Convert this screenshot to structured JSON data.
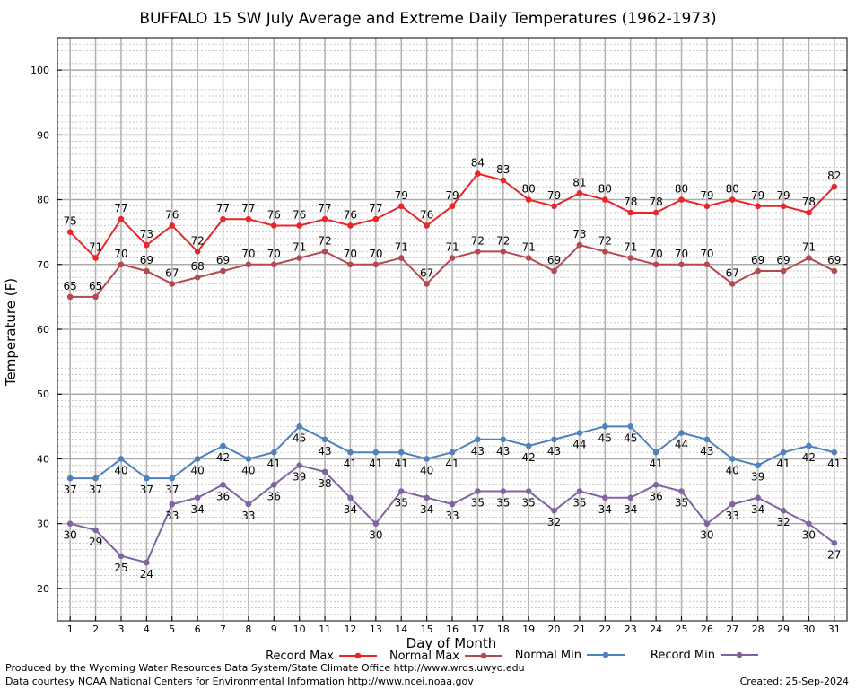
{
  "chart_data": {
    "type": "line",
    "title": "BUFFALO 15 SW July Average and Extreme Daily Temperatures (1962-1973)",
    "xlabel": "Day of Month",
    "ylabel": "Temperature (F)",
    "xlim": [
      0.5,
      31.5
    ],
    "ylim": [
      15,
      105
    ],
    "yticks": [
      20,
      30,
      40,
      50,
      60,
      70,
      80,
      90,
      100
    ],
    "x": [
      1,
      2,
      3,
      4,
      5,
      6,
      7,
      8,
      9,
      10,
      11,
      12,
      13,
      14,
      15,
      16,
      17,
      18,
      19,
      20,
      21,
      22,
      23,
      24,
      25,
      26,
      27,
      28,
      29,
      30,
      31
    ],
    "grid": true,
    "legend_position": "bottom",
    "series": [
      {
        "name": "Record Max",
        "color": "#e8262a",
        "label_pos": "above",
        "values": [
          75,
          71,
          77,
          73,
          76,
          72,
          77,
          77,
          76,
          76,
          77,
          76,
          77,
          79,
          76,
          79,
          84,
          83,
          80,
          79,
          81,
          80,
          78,
          78,
          80,
          79,
          80,
          79,
          79,
          78,
          82
        ]
      },
      {
        "name": "Normal Max",
        "color": "#b5494d",
        "label_pos": "above",
        "values": [
          65,
          65,
          70,
          69,
          67,
          68,
          69,
          70,
          70,
          71,
          72,
          70,
          70,
          71,
          67,
          71,
          72,
          72,
          71,
          69,
          73,
          72,
          71,
          70,
          70,
          70,
          67,
          69,
          69,
          71,
          69
        ]
      },
      {
        "name": "Normal Min",
        "color": "#4f81bd",
        "label_pos": "below",
        "values": [
          37,
          37,
          40,
          37,
          37,
          40,
          42,
          40,
          41,
          45,
          43,
          41,
          41,
          41,
          40,
          41,
          43,
          43,
          42,
          43,
          44,
          45,
          45,
          41,
          44,
          43,
          40,
          39,
          41,
          42,
          41
        ]
      },
      {
        "name": "Record Min",
        "color": "#8064a2",
        "label_pos": "below",
        "values": [
          30,
          29,
          25,
          24,
          33,
          34,
          36,
          33,
          36,
          39,
          38,
          34,
          30,
          35,
          34,
          33,
          35,
          35,
          35,
          32,
          35,
          34,
          34,
          36,
          35,
          30,
          33,
          34,
          32,
          30,
          27
        ]
      }
    ]
  },
  "footer": {
    "line1": "Produced by the Wyoming Water Resources Data System/State Climate Office http://www.wrds.uwyo.edu",
    "line2": "Data courtesy NOAA National Centers for Environmental Information http://www.ncei.noaa.gov",
    "created": "Created:  25-Sep-2024"
  }
}
